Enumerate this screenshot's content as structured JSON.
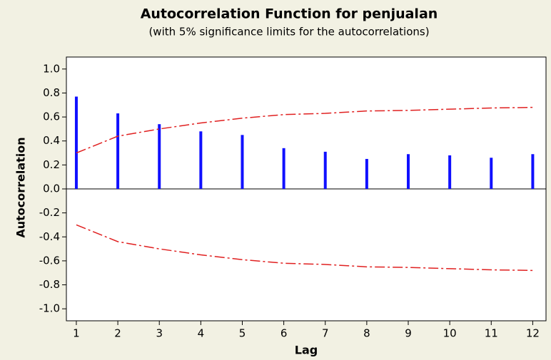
{
  "chart_data": {
    "type": "acf",
    "title": "Autocorrelation Function for penjualan",
    "subtitle": "(with 5% significance limits for the autocorrelations)",
    "x_label": "Lag",
    "y_label": "Autocorrelation",
    "x": [
      1,
      2,
      3,
      4,
      5,
      6,
      7,
      8,
      9,
      10,
      11,
      12
    ],
    "values": [
      0.77,
      0.63,
      0.54,
      0.48,
      0.45,
      0.34,
      0.31,
      0.25,
      0.29,
      0.28,
      0.26,
      0.29
    ],
    "color": "#1010ff",
    "significance_limits": {
      "color": "#e02020",
      "upper": [
        0.3,
        0.44,
        0.5,
        0.55,
        0.59,
        0.62,
        0.63,
        0.65,
        0.655,
        0.665,
        0.675,
        0.68
      ],
      "lower": [
        -0.3,
        -0.44,
        -0.5,
        -0.55,
        -0.59,
        -0.62,
        -0.63,
        -0.65,
        -0.655,
        -0.665,
        -0.675,
        -0.68
      ]
    },
    "xlim": [
      0.76,
      12.32
    ],
    "xticks": [
      1,
      2,
      3,
      4,
      5,
      6,
      7,
      8,
      9,
      10,
      11,
      12
    ],
    "ylim": [
      -1.1,
      1.1
    ],
    "yticks": [
      {
        "value": -1,
        "label": "-1.0"
      },
      -0.8,
      -0.6,
      -0.4,
      -0.2,
      {
        "value": 0,
        "label": "0.0"
      },
      0.2,
      0.4,
      0.6,
      0.8,
      {
        "value": 1,
        "label": "1.0"
      }
    ]
  }
}
